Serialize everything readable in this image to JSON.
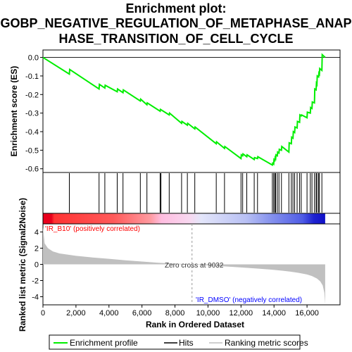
{
  "title_lines": [
    "Enrichment plot:",
    "GOBP_NEGATIVE_REGULATION_OF_METAPHASE_ANAP",
    "HASE_TRANSITION_OF_CELL_CYCLE"
  ],
  "colors": {
    "profile": "#00ee00",
    "hits": "#000000",
    "metric_fill": "#c0c0c0",
    "pos_label": "#ff0000",
    "neg_label": "#0000ff",
    "zero_line": "#999999"
  },
  "chart_data": {
    "type": "line",
    "top_panel": {
      "ylabel": "Enrichment score (ES)",
      "ylim": [
        -0.62,
        0.04
      ],
      "yticks": [
        "0.0",
        "-0.1",
        "-0.2",
        "-0.3",
        "-0.4",
        "-0.5",
        "-0.6"
      ],
      "ytick_values": [
        0.0,
        -0.1,
        -0.2,
        -0.3,
        -0.4,
        -0.5,
        -0.6
      ],
      "series": [
        {
          "name": "Enrichment profile",
          "x": [
            0,
            1600,
            1620,
            3400,
            3420,
            3750,
            3770,
            4500,
            4520,
            4850,
            4870,
            5900,
            5920,
            6300,
            6320,
            7100,
            7120,
            7650,
            7670,
            8400,
            8420,
            8750,
            8770,
            9200,
            9220,
            10500,
            10520,
            11000,
            11020,
            12000,
            12020,
            12100,
            12120,
            12350,
            12370,
            12800,
            12820,
            13000,
            13020,
            13900,
            13920,
            13980,
            14000,
            14050,
            14070,
            14100,
            14120,
            14200,
            14220,
            14300,
            14320,
            14450,
            14470,
            14900,
            14920,
            15050,
            15070,
            15150,
            15170,
            15250,
            15270,
            15400,
            15420,
            15550,
            15570,
            15650,
            15670,
            16000,
            16020,
            16200,
            16220,
            16300,
            16320,
            16450,
            16470,
            16550,
            16570,
            16600,
            16620,
            16700,
            16720,
            16750,
            16770,
            16900,
            16920,
            17100
          ],
          "y": [
            0.0,
            -0.09,
            -0.065,
            -0.17,
            -0.145,
            -0.165,
            -0.15,
            -0.185,
            -0.17,
            -0.19,
            -0.175,
            -0.235,
            -0.225,
            -0.255,
            -0.245,
            -0.29,
            -0.28,
            -0.31,
            -0.3,
            -0.355,
            -0.345,
            -0.365,
            -0.355,
            -0.385,
            -0.375,
            -0.465,
            -0.455,
            -0.49,
            -0.48,
            -0.545,
            -0.525,
            -0.53,
            -0.52,
            -0.535,
            -0.525,
            -0.55,
            -0.54,
            -0.545,
            -0.535,
            -0.58,
            -0.57,
            -0.575,
            -0.55,
            -0.555,
            -0.54,
            -0.545,
            -0.525,
            -0.53,
            -0.51,
            -0.515,
            -0.495,
            -0.5,
            -0.48,
            -0.51,
            -0.46,
            -0.465,
            -0.43,
            -0.435,
            -0.4,
            -0.405,
            -0.375,
            -0.38,
            -0.345,
            -0.35,
            -0.31,
            -0.315,
            -0.31,
            -0.325,
            -0.295,
            -0.3,
            -0.27,
            -0.275,
            -0.24,
            -0.245,
            -0.17,
            -0.175,
            -0.14,
            -0.145,
            -0.1,
            -0.105,
            -0.085,
            -0.09,
            -0.06,
            -0.07,
            0.015,
            0.0
          ]
        }
      ]
    },
    "hits_x": [
      1600,
      3400,
      3750,
      4500,
      4850,
      5900,
      6300,
      7100,
      7150,
      7650,
      8400,
      8750,
      9200,
      10500,
      11000,
      12000,
      12100,
      12350,
      12800,
      13000,
      13900,
      13980,
      14050,
      14100,
      14200,
      14300,
      14450,
      14900,
      15050,
      15150,
      15250,
      15400,
      15550,
      15650,
      16000,
      16200,
      16300,
      16450,
      16550,
      16600,
      16700,
      16750,
      16900
    ],
    "bottom_panel": {
      "ylabel": "Ranked list metric (Signal2Noise)",
      "ylim": [
        -5,
        5
      ],
      "yticks": [
        "4",
        "2",
        "0",
        "-2",
        "-4"
      ],
      "ytick_values": [
        4,
        2,
        0,
        -2,
        -4
      ],
      "metric_curve_x": [
        0,
        100,
        300,
        600,
        1000,
        2000,
        3000,
        4000,
        5000,
        6000,
        7000,
        8000,
        9032,
        10000,
        11000,
        12000,
        13000,
        14000,
        14500,
        15000,
        15500,
        16000,
        16300,
        16600,
        16800,
        16950,
        17050,
        17100
      ],
      "metric_curve_y": [
        4.6,
        2.6,
        2.0,
        1.6,
        1.35,
        1.05,
        0.85,
        0.68,
        0.5,
        0.35,
        0.2,
        0.1,
        0.0,
        -0.12,
        -0.25,
        -0.38,
        -0.52,
        -0.68,
        -0.78,
        -0.9,
        -1.05,
        -1.25,
        -1.45,
        -1.75,
        -2.1,
        -2.6,
        -3.5,
        -4.9
      ],
      "pos_label": "'IR_B10' (positively correlated)",
      "neg_label": "'IR_DMSO' (negatively correlated)",
      "zero_cross_label": "Zero cross at 9032",
      "zero_cross": 9032
    },
    "xlabel": "Rank in Ordered Dataset",
    "xlim": [
      0,
      18000
    ],
    "xticks": [
      "0",
      "2,000",
      "4,000",
      "6,000",
      "8,000",
      "10,000",
      "12,000",
      "14,000",
      "16,000"
    ],
    "xtick_values": [
      0,
      2000,
      4000,
      6000,
      8000,
      10000,
      12000,
      14000,
      16000
    ],
    "n_genes": 17100,
    "legend": [
      "Enrichment profile",
      "Hits",
      "Ranking metric scores"
    ]
  }
}
